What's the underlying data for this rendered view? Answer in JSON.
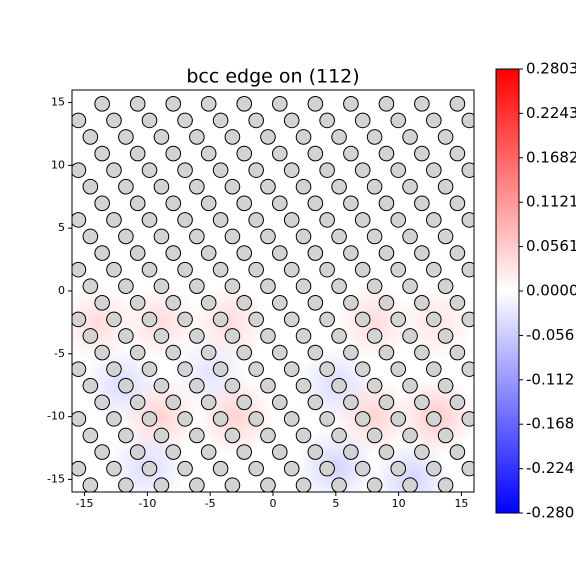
{
  "chart_data": {
    "type": "scatter",
    "title": "bcc edge on (112)",
    "xlim": [
      -16,
      16
    ],
    "ylim": [
      -16,
      16
    ],
    "xticks": [
      -15,
      -10,
      -5,
      0,
      5,
      10,
      15
    ],
    "yticks": [
      -15,
      -10,
      -5,
      0,
      5,
      10,
      15
    ],
    "marker_color": "#d3d3d3",
    "rows": [
      {
        "y": 14.9,
        "x": [
          -13.6,
          -10.77,
          -7.94,
          -5.12,
          -2.29,
          0.54,
          3.37,
          6.2,
          9.03,
          11.85,
          14.68
        ]
      },
      {
        "y": 13.58,
        "x": [
          -15.49,
          -12.66,
          -9.83,
          -7,
          -4.17,
          -1.34,
          1.49,
          4.31,
          7.14,
          9.97,
          12.8,
          15.63
        ]
      },
      {
        "y": 12.26,
        "x": [
          -14.54,
          -11.71,
          -8.88,
          -6.06,
          -3.23,
          -0.4,
          2.43,
          5.26,
          8.09,
          10.91,
          13.74
        ]
      },
      {
        "y": 10.94,
        "x": [
          -13.6,
          -10.77,
          -7.94,
          -5.12,
          -2.29,
          0.54,
          3.37,
          6.2,
          9.03,
          11.85,
          14.68
        ]
      },
      {
        "y": 9.62,
        "x": [
          -15.49,
          -12.66,
          -9.83,
          -7,
          -4.17,
          -1.34,
          1.49,
          4.31,
          7.14,
          9.97,
          12.8,
          15.63
        ]
      },
      {
        "y": 8.3,
        "x": [
          -14.54,
          -11.71,
          -8.88,
          -6.06,
          -3.23,
          -0.4,
          2.43,
          5.26,
          8.09,
          10.91,
          13.74
        ]
      },
      {
        "y": 6.98,
        "x": [
          -13.6,
          -10.77,
          -7.94,
          -5.12,
          -2.29,
          0.54,
          3.37,
          6.2,
          9.03,
          11.85,
          14.68
        ]
      },
      {
        "y": 5.66,
        "x": [
          -15.49,
          -12.66,
          -9.83,
          -7,
          -4.17,
          -1.34,
          1.49,
          4.31,
          7.14,
          9.97,
          12.8,
          15.63
        ]
      },
      {
        "y": 4.34,
        "x": [
          -14.54,
          -11.71,
          -8.88,
          -6.06,
          -3.23,
          -0.4,
          2.43,
          5.26,
          8.09,
          10.91,
          13.74
        ]
      },
      {
        "y": 3.02,
        "x": [
          -13.6,
          -10.77,
          -7.94,
          -5.12,
          -2.29,
          0.54,
          3.37,
          6.2,
          9.03,
          11.85,
          14.68
        ]
      },
      {
        "y": 1.7,
        "x": [
          -15.49,
          -12.66,
          -9.83,
          -7,
          -4.17,
          -1.34,
          1.49,
          4.31,
          7.14,
          9.97,
          12.8,
          15.63
        ]
      },
      {
        "y": 0.38,
        "x": [
          -14.54,
          -11.71,
          -8.88,
          -6.06,
          -3.23,
          -0.4,
          2.43,
          5.26,
          8.09,
          10.91,
          13.74
        ]
      },
      {
        "y": -0.94,
        "x": [
          -13.6,
          -10.77,
          -7.94,
          -5.12,
          -2.29,
          0.54,
          3.37,
          6.2,
          9.03,
          11.85,
          14.68
        ]
      },
      {
        "y": -2.26,
        "x": [
          -15.49,
          -12.66,
          -9.83,
          -7,
          -4.17,
          -1.34,
          1.49,
          4.31,
          7.14,
          9.97,
          12.8,
          15.63
        ]
      },
      {
        "y": -3.58,
        "x": [
          -14.54,
          -11.71,
          -8.88,
          -6.06,
          -3.23,
          -0.4,
          2.43,
          5.26,
          8.09,
          10.91,
          13.74
        ]
      },
      {
        "y": -4.9,
        "x": [
          -13.6,
          -10.77,
          -7.94,
          -5.12,
          -2.29,
          0.54,
          3.37,
          6.2,
          9.03,
          11.85,
          14.68
        ]
      },
      {
        "y": -6.22,
        "x": [
          -15.49,
          -12.66,
          -9.83,
          -7,
          -4.17,
          -1.34,
          1.49,
          4.31,
          7.14,
          9.97,
          12.8,
          15.63
        ]
      },
      {
        "y": -7.54,
        "x": [
          -14.54,
          -11.71,
          -8.88,
          -6.06,
          -3.23,
          -0.4,
          2.43,
          5.26,
          8.09,
          10.91,
          13.74
        ]
      },
      {
        "y": -8.86,
        "x": [
          -13.6,
          -10.77,
          -7.94,
          -5.12,
          -2.29,
          0.54,
          3.37,
          6.2,
          9.03,
          11.85,
          14.68
        ]
      },
      {
        "y": -10.18,
        "x": [
          -15.49,
          -12.66,
          -9.83,
          -7,
          -4.17,
          -1.34,
          1.49,
          4.31,
          7.14,
          9.97,
          12.8,
          15.63
        ]
      },
      {
        "y": -11.5,
        "x": [
          -14.54,
          -11.71,
          -8.88,
          -6.06,
          -3.23,
          -0.4,
          2.43,
          5.26,
          8.09,
          10.91,
          13.74
        ]
      },
      {
        "y": -12.82,
        "x": [
          -13.6,
          -10.77,
          -7.94,
          -5.12,
          -2.29,
          0.54,
          3.37,
          6.2,
          9.03,
          11.85,
          14.68
        ]
      },
      {
        "y": -14.14,
        "x": [
          -15.49,
          -12.66,
          -9.83,
          -7,
          -4.17,
          -1.34,
          1.49,
          4.31,
          7.14,
          9.97,
          12.8,
          15.63
        ]
      },
      {
        "y": -15.46,
        "x": [
          -14.54,
          -11.71,
          -8.88,
          -6.06,
          -3.23,
          -0.4,
          2.43,
          5.26,
          8.09,
          10.91,
          13.74
        ]
      }
    ],
    "field": {
      "x": [
        -14,
        -9,
        -3.5,
        8,
        13,
        -12,
        -5,
        5,
        -9,
        -3,
        8,
        13,
        -10,
        5,
        11
      ],
      "y": [
        -2.5,
        -2.5,
        -2.5,
        -2.5,
        -2.5,
        -7.5,
        -6.5,
        -7.5,
        -10,
        -10,
        -10,
        -10,
        -14,
        -14,
        -15
      ],
      "values": [
        0.04,
        0.04,
        0.04,
        0.04,
        0.03,
        -0.04,
        -0.03,
        -0.04,
        0.05,
        0.05,
        0.05,
        0.06,
        -0.04,
        -0.05,
        -0.05
      ]
    },
    "colormap": [
      "#0000ff",
      "#ffffff",
      "#ff0000"
    ],
    "clim": [
      -0.2803,
      0.2803
    ],
    "cticks": [
      0.2803,
      0.2243,
      0.1682,
      0.1121,
      0.0561,
      {
        "value": 0,
        "label": "0.0000"
      },
      {
        "value": -0.0561,
        "label": "-0.056"
      },
      {
        "value": -0.1121,
        "label": "-0.112"
      },
      {
        "value": -0.1682,
        "label": "-0.168"
      },
      {
        "value": -0.2243,
        "label": "-0.224"
      },
      {
        "value": -0.2803,
        "label": "-0.280"
      }
    ]
  }
}
